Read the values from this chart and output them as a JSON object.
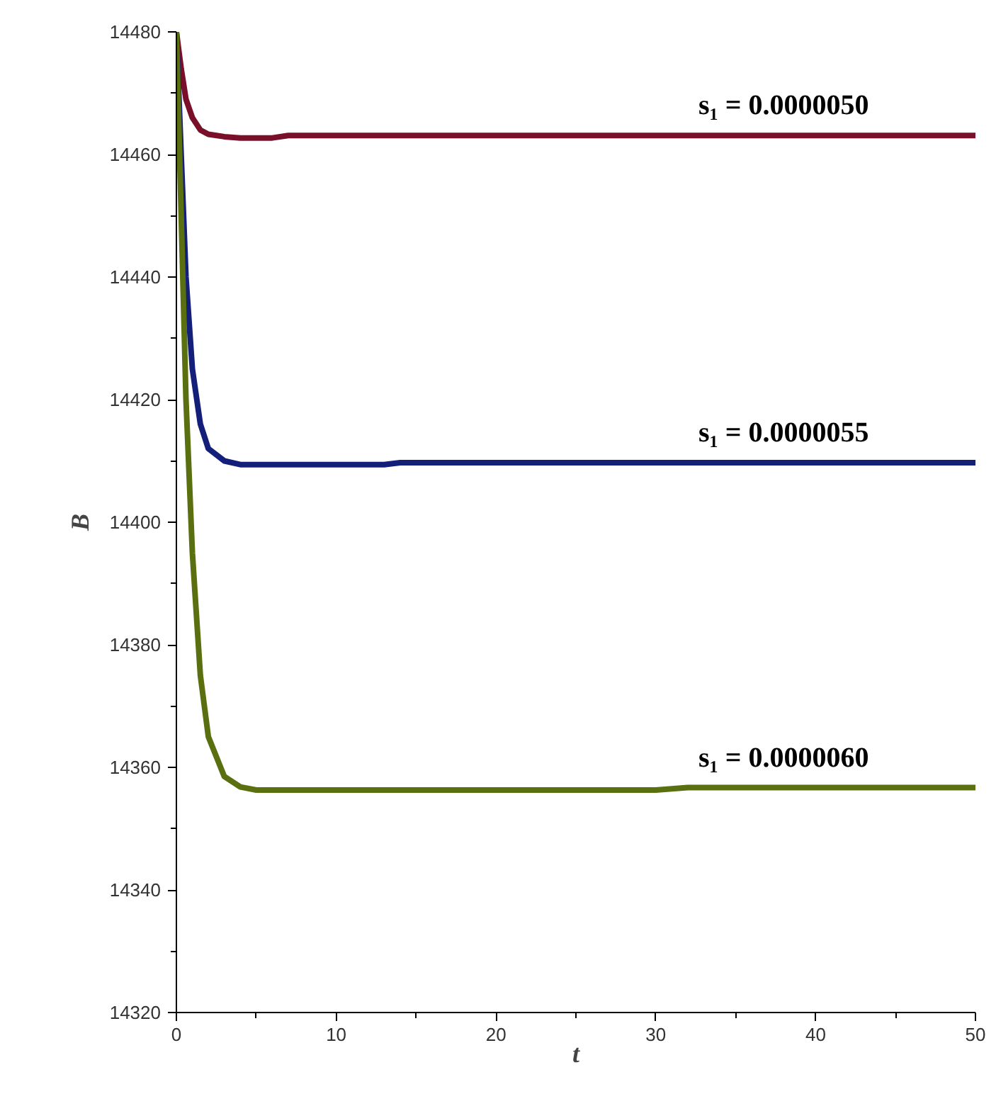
{
  "chart_data": {
    "type": "line",
    "xlabel": "t",
    "ylabel": "B",
    "xlim": [
      0,
      50
    ],
    "ylim": [
      14320,
      14480
    ],
    "xticks": [
      0,
      10,
      20,
      30,
      40,
      50
    ],
    "yticks": [
      14320,
      14340,
      14360,
      14380,
      14400,
      14420,
      14440,
      14460,
      14480
    ],
    "grid": false,
    "legend": false,
    "marker": "none",
    "line_style": "solid",
    "series": [
      {
        "name": "s₁ = 0.0000050",
        "color": "#7a0f2a",
        "x": [
          0,
          0.3,
          0.6,
          1,
          1.5,
          2,
          3,
          4,
          6,
          7,
          10,
          50
        ],
        "values": [
          14480,
          14474,
          14469,
          14466,
          14464,
          14463.3,
          14462.9,
          14462.7,
          14462.7,
          14463.1,
          14463.1,
          14463.1
        ]
      },
      {
        "name": "s₁ = 0.0000055",
        "color": "#141f7a",
        "x": [
          0,
          0.3,
          0.6,
          1,
          1.5,
          2,
          3,
          4,
          10,
          13,
          14,
          50
        ],
        "values": [
          14480,
          14460,
          14440,
          14425,
          14416,
          14412,
          14410,
          14409.4,
          14409.4,
          14409.4,
          14409.7,
          14409.7
        ]
      },
      {
        "name": "s₁ = 0.0000060",
        "color": "#5a7010",
        "x": [
          0,
          0.3,
          0.6,
          1,
          1.5,
          2,
          3,
          4,
          5,
          30,
          32,
          50
        ],
        "values": [
          14480,
          14450,
          14420,
          14395,
          14375,
          14365,
          14358.5,
          14356.8,
          14356.3,
          14356.3,
          14356.7,
          14356.7
        ]
      }
    ]
  }
}
